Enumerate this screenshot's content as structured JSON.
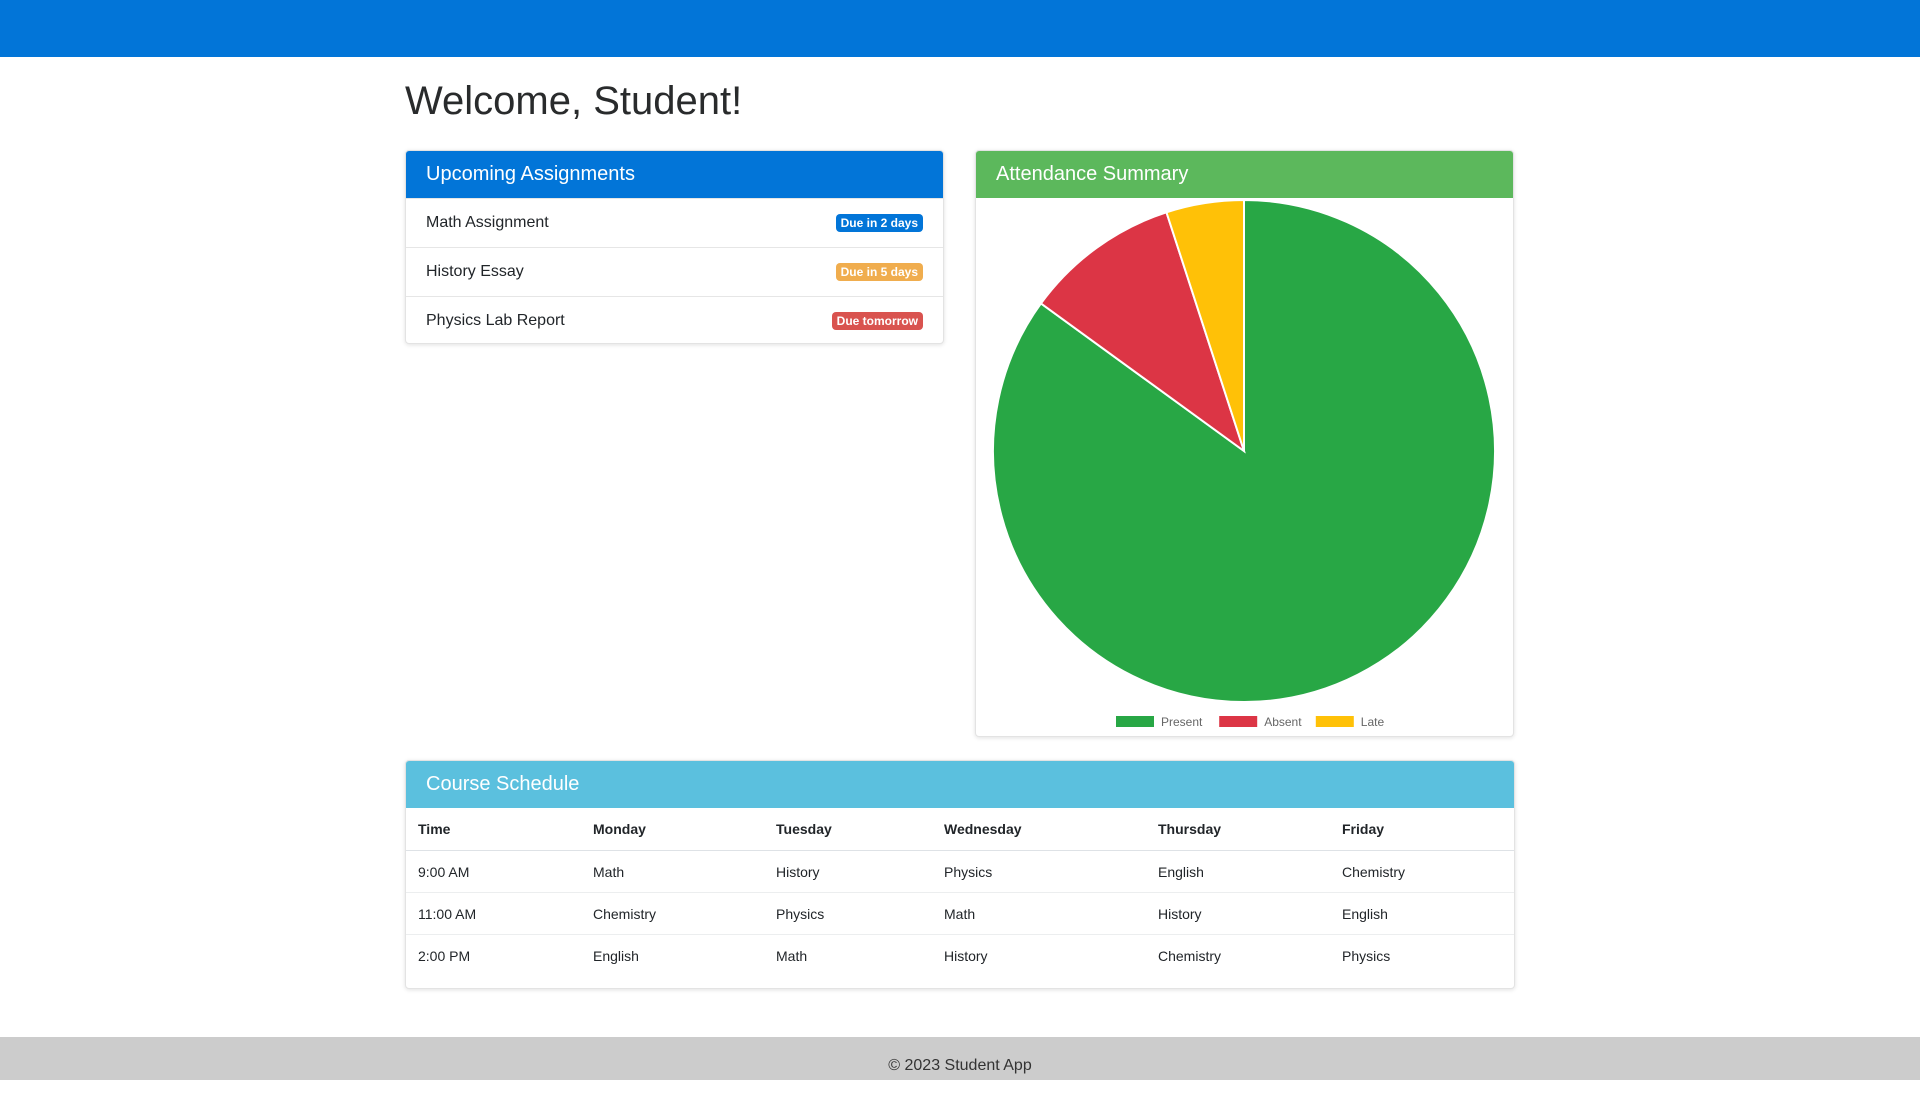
{
  "page_title": "Welcome, Student!",
  "assignments": {
    "title": "Upcoming Assignments",
    "items": [
      {
        "name": "Math Assignment",
        "due": "Due in 2 days",
        "status": "primary"
      },
      {
        "name": "History Essay",
        "due": "Due in 5 days",
        "status": "warning"
      },
      {
        "name": "Physics Lab Report",
        "due": "Due tomorrow",
        "status": "danger"
      }
    ]
  },
  "attendance": {
    "title": "Attendance Summary",
    "chart_data": {
      "type": "pie",
      "categories": [
        "Present",
        "Absent",
        "Late"
      ],
      "values": [
        85,
        10,
        5
      ],
      "colors": [
        "#28a745",
        "#dc3545",
        "#ffc107"
      ],
      "legend": "bottom"
    }
  },
  "schedule": {
    "title": "Course Schedule",
    "headers": [
      "Time",
      "Monday",
      "Tuesday",
      "Wednesday",
      "Thursday",
      "Friday"
    ],
    "rows": [
      [
        "9:00 AM",
        "Math",
        "History",
        "Physics",
        "English",
        "Chemistry"
      ],
      [
        "11:00 AM",
        "Chemistry",
        "Physics",
        "Math",
        "History",
        "English"
      ],
      [
        "2:00 PM",
        "English",
        "Math",
        "History",
        "Chemistry",
        "Physics"
      ]
    ]
  },
  "footer": "© 2023 Student App"
}
